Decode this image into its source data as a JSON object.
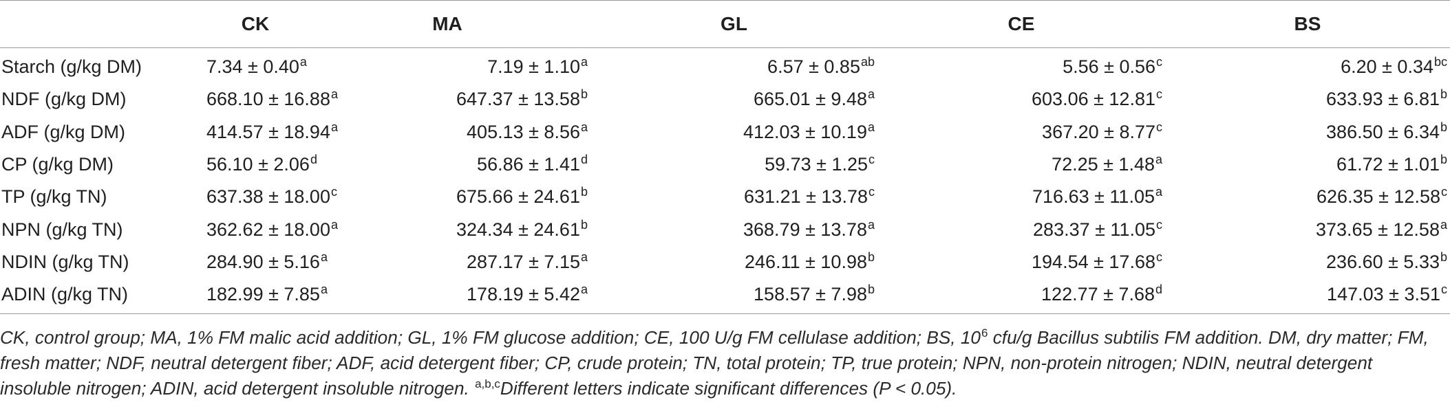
{
  "table": {
    "columns": [
      "",
      "CK",
      "MA",
      "GL",
      "CE",
      "BS"
    ],
    "rows": [
      {
        "label": "Starch (g/kg DM)",
        "cells": [
          {
            "v": "7.34 ± 0.40",
            "s": "a"
          },
          {
            "v": "7.19 ± 1.10",
            "s": "a"
          },
          {
            "v": "6.57 ± 0.85",
            "s": "ab"
          },
          {
            "v": "5.56 ± 0.56",
            "s": "c"
          },
          {
            "v": "6.20 ± 0.34",
            "s": "bc"
          }
        ]
      },
      {
        "label": "NDF (g/kg DM)",
        "cells": [
          {
            "v": "668.10 ± 16.88",
            "s": "a"
          },
          {
            "v": "647.37 ± 13.58",
            "s": "b"
          },
          {
            "v": "665.01 ± 9.48",
            "s": "a"
          },
          {
            "v": "603.06 ± 12.81",
            "s": "c"
          },
          {
            "v": "633.93 ± 6.81",
            "s": "b"
          }
        ]
      },
      {
        "label": "ADF (g/kg DM)",
        "cells": [
          {
            "v": "414.57 ± 18.94",
            "s": "a"
          },
          {
            "v": "405.13 ± 8.56",
            "s": "a"
          },
          {
            "v": "412.03 ± 10.19",
            "s": "a"
          },
          {
            "v": "367.20 ± 8.77",
            "s": "c"
          },
          {
            "v": "386.50 ± 6.34",
            "s": "b"
          }
        ]
      },
      {
        "label": "CP (g/kg DM)",
        "cells": [
          {
            "v": "56.10 ± 2.06",
            "s": "d"
          },
          {
            "v": "56.86 ± 1.41",
            "s": "d"
          },
          {
            "v": "59.73 ± 1.25",
            "s": "c"
          },
          {
            "v": "72.25 ± 1.48",
            "s": "a"
          },
          {
            "v": "61.72 ± 1.01",
            "s": "b"
          }
        ]
      },
      {
        "label": "TP (g/kg TN)",
        "cells": [
          {
            "v": "637.38 ± 18.00",
            "s": "c"
          },
          {
            "v": "675.66 ± 24.61",
            "s": "b"
          },
          {
            "v": "631.21 ± 13.78",
            "s": "c"
          },
          {
            "v": "716.63 ± 11.05",
            "s": "a"
          },
          {
            "v": "626.35 ± 12.58",
            "s": "c"
          }
        ]
      },
      {
        "label": "NPN (g/kg TN)",
        "cells": [
          {
            "v": "362.62 ± 18.00",
            "s": "a"
          },
          {
            "v": "324.34 ± 24.61",
            "s": "b"
          },
          {
            "v": "368.79 ± 13.78",
            "s": "a"
          },
          {
            "v": "283.37 ± 11.05",
            "s": "c"
          },
          {
            "v": "373.65 ± 12.58",
            "s": "a"
          }
        ]
      },
      {
        "label": "NDIN (g/kg TN)",
        "cells": [
          {
            "v": "284.90 ± 5.16",
            "s": "a"
          },
          {
            "v": "287.17 ± 7.15",
            "s": "a"
          },
          {
            "v": "246.11 ± 10.98",
            "s": "b"
          },
          {
            "v": "194.54 ± 17.68",
            "s": "c"
          },
          {
            "v": "236.60 ± 5.33",
            "s": "b"
          }
        ]
      },
      {
        "label": "ADIN (g/kg TN)",
        "cells": [
          {
            "v": "182.99 ± 7.85",
            "s": "a"
          },
          {
            "v": "178.19 ± 5.42",
            "s": "a"
          },
          {
            "v": "158.57 ± 7.98",
            "s": "b"
          },
          {
            "v": "122.77 ± 7.68",
            "s": "d"
          },
          {
            "v": "147.03 ± 3.51",
            "s": "c"
          }
        ]
      }
    ]
  },
  "footnote": {
    "part1": "CK, control group; MA, 1% FM malic acid addition; GL, 1% FM glucose addition; CE, 100 U/g FM cellulase addition; BS, 10",
    "exp": "6",
    "part2": " cfu/g Bacillus subtilis FM addition. DM, dry matter; FM, fresh matter; NDF, neutral detergent fiber; ADF, acid detergent fiber; CP, crude protein; TN, total protein; TP, true protein; NPN, non-protein nitrogen; NDIN, neutral detergent insoluble nitrogen; ADIN, acid detergent insoluble nitrogen. ",
    "letters": "a,b,c",
    "part3": "Different letters indicate significant differences (P < 0.05)."
  }
}
